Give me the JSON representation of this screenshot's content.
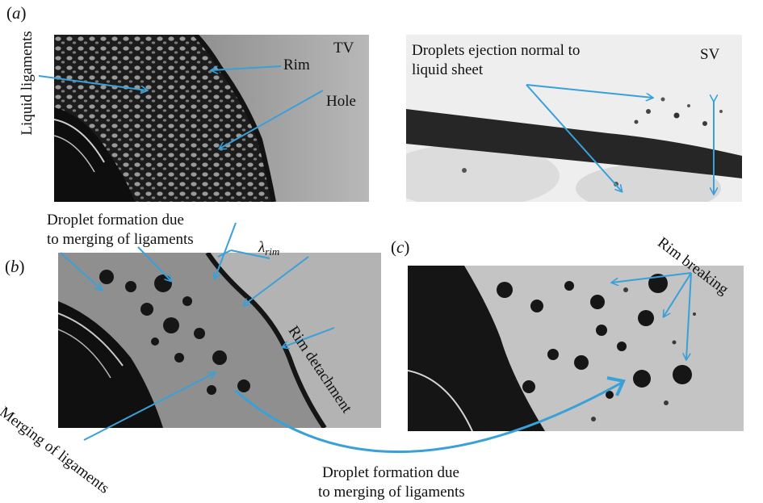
{
  "panels": {
    "a": {
      "letter": "a"
    },
    "b": {
      "letter": "b"
    },
    "c": {
      "letter": "c"
    }
  },
  "labels": {
    "liquid_ligaments": "Liquid ligaments",
    "rim": "Rim",
    "tv": "TV",
    "hole": "Hole",
    "droplets_ejection_line1": "Droplets ejection normal to",
    "droplets_ejection_line2": "liquid sheet",
    "sv": "SV",
    "droplet_formation_top_line1": "Droplet formation due",
    "droplet_formation_top_line2": "to merging of ligaments",
    "lambda_main": "λ",
    "lambda_sub": "rim",
    "rim_detachment": "Rim detachment",
    "merging_of_ligaments": "Merging of ligaments",
    "rim_breaking": "Rim breaking",
    "droplet_formation_bottom_line1": "Droplet formation due",
    "droplet_formation_bottom_line2": "to merging of ligaments"
  },
  "colors": {
    "arrow": "#3aa0d8",
    "photo_background": "#a9a9a9",
    "photo_dark": "#1a1a1a"
  }
}
